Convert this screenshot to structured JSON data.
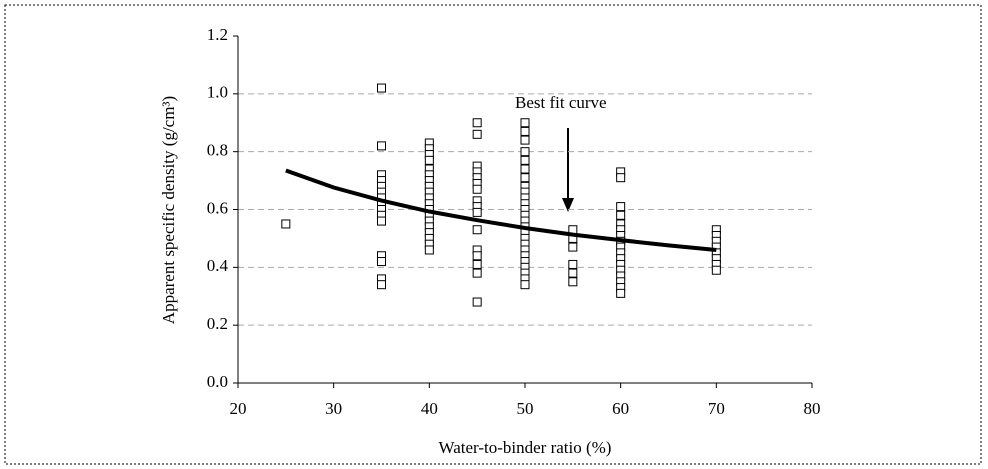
{
  "chart_data": {
    "type": "scatter",
    "x_label": "Water-to-binder ratio (%)",
    "y_label": "Apparent specific density (g/cm³)",
    "annotation": "Best fit curve",
    "xlim": [
      20,
      80
    ],
    "xticks": [
      20,
      30,
      40,
      50,
      60,
      70,
      80
    ],
    "ylim": [
      0,
      1.2
    ],
    "yticks": [
      {
        "value": 0,
        "label": "0.0"
      },
      0.2,
      0.4,
      0.6,
      0.8,
      {
        "value": 1,
        "label": "1.0"
      },
      1.2
    ],
    "grid": true,
    "points": {
      "x": [
        25,
        35,
        35,
        35,
        35,
        35,
        35,
        35,
        35,
        35,
        35,
        35,
        35,
        35,
        35,
        35,
        40,
        40,
        40,
        40,
        40,
        40,
        40,
        40,
        40,
        40,
        40,
        40,
        40,
        40,
        40,
        40,
        40,
        40,
        40,
        45,
        45,
        45,
        45,
        45,
        45,
        45,
        45,
        45,
        45,
        45,
        45,
        45,
        45,
        45,
        45,
        50,
        50,
        50,
        50,
        50,
        50,
        50,
        50,
        50,
        50,
        50,
        50,
        50,
        50,
        50,
        50,
        50,
        50,
        50,
        50,
        50,
        50,
        50,
        50,
        50,
        55,
        55,
        55,
        55,
        55,
        55,
        60,
        60,
        60,
        60,
        60,
        60,
        60,
        60,
        60,
        60,
        60,
        60,
        60,
        60,
        60,
        60,
        60,
        70,
        70,
        70,
        70,
        70,
        70,
        70,
        70
      ],
      "y": [
        0.55,
        1.02,
        0.82,
        0.72,
        0.7,
        0.68,
        0.66,
        0.64,
        0.62,
        0.6,
        0.58,
        0.56,
        0.44,
        0.42,
        0.36,
        0.34,
        0.83,
        0.81,
        0.79,
        0.77,
        0.74,
        0.72,
        0.7,
        0.68,
        0.66,
        0.64,
        0.62,
        0.6,
        0.58,
        0.56,
        0.54,
        0.52,
        0.5,
        0.48,
        0.46,
        0.9,
        0.86,
        0.75,
        0.73,
        0.71,
        0.69,
        0.67,
        0.63,
        0.61,
        0.59,
        0.53,
        0.46,
        0.44,
        0.41,
        0.38,
        0.28,
        0.9,
        0.87,
        0.84,
        0.8,
        0.77,
        0.74,
        0.71,
        0.68,
        0.66,
        0.64,
        0.62,
        0.6,
        0.58,
        0.56,
        0.54,
        0.52,
        0.5,
        0.48,
        0.46,
        0.44,
        0.42,
        0.4,
        0.38,
        0.36,
        0.34,
        0.53,
        0.5,
        0.47,
        0.41,
        0.38,
        0.35,
        0.73,
        0.71,
        0.61,
        0.58,
        0.55,
        0.53,
        0.51,
        0.49,
        0.47,
        0.45,
        0.43,
        0.41,
        0.39,
        0.37,
        0.35,
        0.33,
        0.31,
        0.53,
        0.51,
        0.49,
        0.47,
        0.45,
        0.43,
        0.41,
        0.39
      ]
    },
    "fit": {
      "x": [
        25,
        30,
        35,
        40,
        45,
        50,
        55,
        60,
        65,
        70
      ],
      "y": [
        0.735,
        0.676,
        0.631,
        0.593,
        0.563,
        0.536,
        0.513,
        0.494,
        0.476,
        0.46
      ]
    }
  }
}
